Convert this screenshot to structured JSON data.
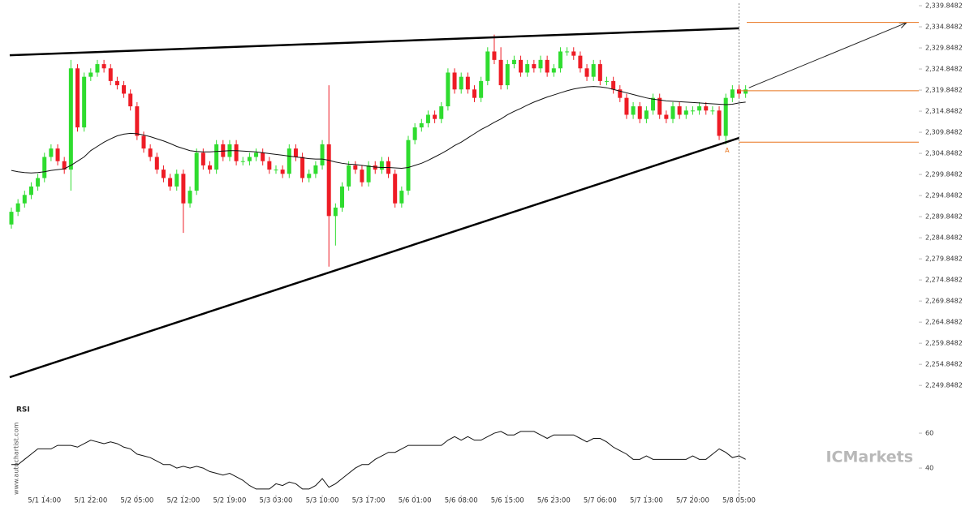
{
  "chart_data": {
    "type": "candlestick",
    "categories": [
      null,
      null,
      null,
      null,
      null,
      "5/1 14:00",
      null,
      null,
      null,
      null,
      null,
      null,
      "5/1 22:00",
      null,
      null,
      null,
      null,
      null,
      null,
      "5/2 05:00",
      null,
      null,
      null,
      null,
      null,
      null,
      "5/2 12:00",
      null,
      null,
      null,
      null,
      null,
      null,
      "5/2 19:00",
      null,
      null,
      null,
      null,
      null,
      null,
      "5/3 03:00",
      null,
      null,
      null,
      null,
      null,
      null,
      "5/3 10:00",
      null,
      null,
      null,
      null,
      null,
      null,
      "5/3 17:00",
      null,
      null,
      null,
      null,
      null,
      null,
      "5/6 01:00",
      null,
      null,
      null,
      null,
      null,
      null,
      "5/6 08:00",
      null,
      null,
      null,
      null,
      null,
      null,
      "5/6 15:00",
      null,
      null,
      null,
      null,
      null,
      null,
      "5/6 23:00",
      null,
      null,
      null,
      null,
      null,
      null,
      "5/7 06:00",
      null,
      null,
      null,
      null,
      null,
      null,
      "5/7 13:00",
      null,
      null,
      null,
      null,
      null,
      null,
      "5/7 20:00",
      null,
      null,
      null,
      null,
      null,
      null,
      "5/8 05:00",
      null
    ],
    "ohlc": {
      "up_color": "#2fdc2f",
      "down_color": "#ee1c25",
      "open": [
        2288,
        2291,
        2293,
        2295,
        2297,
        2299,
        2304,
        2306,
        2303,
        2301,
        2325,
        2311,
        2323,
        2324,
        2326,
        2325,
        2322,
        2321,
        2319,
        2316,
        2309,
        2306,
        2304,
        2301,
        2299,
        2297,
        2300,
        2293,
        2296,
        2305,
        2302,
        2301,
        2307,
        2304,
        2307,
        2303,
        2303,
        2304,
        2305,
        2303,
        2301,
        2301,
        2300,
        2306,
        2304,
        2299,
        2300,
        2302,
        2307,
        2290,
        2292,
        2297,
        2302,
        2301,
        2298,
        2302,
        2301,
        2303,
        2300,
        2293,
        2296,
        2308,
        2311,
        2312,
        2314,
        2313,
        2316,
        2324,
        2320,
        2323,
        2320,
        2318,
        2322,
        2329,
        2327,
        2321,
        2326,
        2327,
        2324,
        2326,
        2325,
        2327,
        2324,
        2325,
        2329,
        2329,
        2328,
        2325,
        2323,
        2326,
        2322,
        2322,
        2320,
        2318,
        2314,
        2316,
        2313,
        2315,
        2318,
        2314,
        2313,
        2316,
        2314,
        2315,
        2315,
        2316,
        2315,
        2315,
        2309,
        2318,
        2320,
        2319
      ],
      "high": [
        2292,
        2294,
        2296,
        2298,
        2300,
        2305,
        2307,
        2307,
        2304,
        2327,
        2326,
        2324,
        2325,
        2327,
        2327,
        2326,
        2323,
        2322,
        2320,
        2317,
        2310,
        2307,
        2305,
        2302,
        2300,
        2301,
        2301,
        2297,
        2306,
        2306,
        2303,
        2308,
        2308,
        2308,
        2308,
        2304,
        2305,
        2306,
        2306,
        2304,
        2302,
        2302,
        2307,
        2307,
        2305,
        2301,
        2303,
        2308,
        2321,
        2293,
        2298,
        2303,
        2303,
        2302,
        2303,
        2303,
        2304,
        2304,
        2301,
        2297,
        2309,
        2312,
        2313,
        2315,
        2315,
        2317,
        2325,
        2325,
        2324,
        2324,
        2321,
        2323,
        2330,
        2333,
        2330,
        2327,
        2328,
        2328,
        2327,
        2327,
        2328,
        2328,
        2326,
        2330,
        2330,
        2330,
        2329,
        2326,
        2327,
        2327,
        2323,
        2323,
        2321,
        2319,
        2317,
        2317,
        2316,
        2319,
        2319,
        2315,
        2317,
        2317,
        2316,
        2316,
        2317,
        2317,
        2316,
        2316,
        2319,
        2321,
        2321,
        2321
      ],
      "low": [
        2287,
        2290,
        2292,
        2294,
        2296,
        2298,
        2303,
        2302,
        2300,
        2296,
        2310,
        2310,
        2322,
        2323,
        2324,
        2321,
        2320,
        2318,
        2315,
        2308,
        2305,
        2303,
        2300,
        2298,
        2296,
        2296,
        2286,
        2292,
        2295,
        2301,
        2300,
        2300,
        2303,
        2303,
        2302,
        2302,
        2302,
        2303,
        2302,
        2300,
        2300,
        2299,
        2299,
        2303,
        2298,
        2298,
        2299,
        2301,
        2278,
        2283,
        2291,
        2296,
        2300,
        2297,
        2297,
        2300,
        2300,
        2299,
        2292,
        2292,
        2295,
        2307,
        2310,
        2311,
        2312,
        2312,
        2315,
        2319,
        2319,
        2319,
        2317,
        2317,
        2321,
        2326,
        2320,
        2320,
        2325,
        2323,
        2323,
        2324,
        2324,
        2323,
        2323,
        2324,
        2328,
        2327,
        2324,
        2322,
        2322,
        2321,
        2321,
        2319,
        2317,
        2313,
        2313,
        2312,
        2312,
        2314,
        2313,
        2312,
        2312,
        2313,
        2313,
        2314,
        2314,
        2314,
        2314,
        2308,
        2307,
        2317,
        2318,
        2318
      ],
      "close": [
        2291,
        2293,
        2295,
        2297,
        2299,
        2304,
        2306,
        2303,
        2301,
        2325,
        2311,
        2323,
        2324,
        2326,
        2325,
        2322,
        2321,
        2319,
        2316,
        2309,
        2306,
        2304,
        2301,
        2299,
        2297,
        2300,
        2293,
        2296,
        2305,
        2302,
        2301,
        2307,
        2304,
        2307,
        2303,
        2303,
        2304,
        2305,
        2303,
        2301,
        2301,
        2300,
        2306,
        2304,
        2299,
        2300,
        2302,
        2307,
        2290,
        2292,
        2297,
        2302,
        2301,
        2298,
        2302,
        2301,
        2303,
        2300,
        2293,
        2296,
        2308,
        2311,
        2312,
        2314,
        2313,
        2316,
        2324,
        2320,
        2323,
        2320,
        2318,
        2322,
        2329,
        2327,
        2321,
        2326,
        2327,
        2324,
        2326,
        2325,
        2327,
        2324,
        2325,
        2329,
        2329,
        2328,
        2325,
        2323,
        2326,
        2322,
        2322,
        2320,
        2318,
        2314,
        2316,
        2313,
        2315,
        2318,
        2314,
        2313,
        2316,
        2314,
        2315,
        2315,
        2316,
        2315,
        2315,
        2309,
        2318,
        2320,
        2319,
        2320
      ]
    },
    "moving_average": {
      "color": "#111111",
      "values": [
        2300.8,
        2300.5,
        2300.3,
        2300.2,
        2300.3,
        2300.5,
        2300.8,
        2301,
        2301.2,
        2302,
        2303,
        2304,
        2305.5,
        2306.5,
        2307.5,
        2308.3,
        2309,
        2309.4,
        2309.6,
        2309.5,
        2309.2,
        2308.8,
        2308.3,
        2307.8,
        2307.2,
        2306.5,
        2306,
        2305.5,
        2305.3,
        2305.2,
        2305.2,
        2305.3,
        2305.4,
        2305.5,
        2305.5,
        2305.4,
        2305.3,
        2305.2,
        2305,
        2304.8,
        2304.6,
        2304.4,
        2304.2,
        2304,
        2303.8,
        2303.6,
        2303.5,
        2303.5,
        2303.2,
        2302.8,
        2302.5,
        2302.3,
        2302.2,
        2302,
        2301.8,
        2301.6,
        2301.5,
        2301.5,
        2301.4,
        2301.3,
        2301.5,
        2302,
        2302.5,
        2303.2,
        2304,
        2304.8,
        2305.7,
        2306.7,
        2307.5,
        2308.5,
        2309.5,
        2310.5,
        2311.3,
        2312.2,
        2313,
        2314,
        2314.8,
        2315.5,
        2316.3,
        2317,
        2317.6,
        2318.2,
        2318.7,
        2319.2,
        2319.7,
        2320.1,
        2320.4,
        2320.6,
        2320.7,
        2320.6,
        2320.4,
        2320,
        2319.6,
        2319.2,
        2318.8,
        2318.4,
        2318,
        2317.7,
        2317.5,
        2317.3,
        2317.2,
        2317.1,
        2317,
        2316.9,
        2316.8,
        2316.7,
        2316.6,
        2316.5,
        2316.4,
        2316.5,
        2316.8,
        2317
      ]
    },
    "ylim": [
      2247,
      2341.2
    ],
    "yticks": [
      {
        "value": 2249.8482,
        "label": "2,249.8482"
      },
      {
        "value": 2254.8482,
        "label": "2,254.8482"
      },
      {
        "value": 2259.8482,
        "label": "2,259.8482"
      },
      {
        "value": 2264.8482,
        "label": "2,264.8482"
      },
      {
        "value": 2269.8482,
        "label": "2,269.8482"
      },
      {
        "value": 2274.8482,
        "label": "2,274.8482"
      },
      {
        "value": 2279.8482,
        "label": "2,279.8482"
      },
      {
        "value": 2284.8482,
        "label": "2,284.8482"
      },
      {
        "value": 2289.8482,
        "label": "2,289.8482"
      },
      {
        "value": 2294.8482,
        "label": "2,294.8482"
      },
      {
        "value": 2299.8482,
        "label": "2,299.8482"
      },
      {
        "value": 2304.8482,
        "label": "2,304.8482"
      },
      {
        "value": 2309.8482,
        "label": "2,309.8482"
      },
      {
        "value": 2314.8482,
        "label": "2,314.8482"
      },
      {
        "value": 2319.8482,
        "label": "2,319.8482"
      },
      {
        "value": 2324.8482,
        "label": "2,324.8482"
      },
      {
        "value": 2329.8482,
        "label": "2,329.8482"
      },
      {
        "value": 2334.8482,
        "label": "2,334.8482"
      },
      {
        "value": 2339.8482,
        "label": "2,339.8482"
      }
    ],
    "trendlines": [
      {
        "x": [
          -0.25,
          110
        ],
        "y": [
          2328.1,
          2334.5
        ]
      },
      {
        "x": [
          -0.25,
          110
        ],
        "y": [
          2251.8,
          2308.5
        ]
      }
    ],
    "projection": {
      "x": [
        111.5,
        135.3
      ],
      "y": [
        2320.4,
        2335.8
      ]
    },
    "levels": [
      2335.9,
      2319.7,
      2307.5
    ],
    "level_color": "#e8731c",
    "current_index": 110,
    "annotation": {
      "text": "A",
      "x": 108.2,
      "y": 2305.5
    },
    "rsi": {
      "title": "RSI",
      "ylim": [
        24.7,
        73.5
      ],
      "yticks": [
        40,
        60
      ],
      "values": [
        42,
        42,
        45,
        48,
        51,
        51,
        51,
        53,
        53,
        53,
        52,
        54,
        56,
        55,
        54,
        55,
        54,
        52,
        51,
        48,
        47,
        46,
        44,
        42,
        42,
        40,
        41,
        40,
        41,
        40,
        38,
        37,
        36,
        37,
        35,
        33,
        30,
        28,
        28,
        28,
        31,
        30,
        32,
        31,
        28,
        28,
        30,
        34,
        29,
        31,
        34,
        37,
        40,
        42,
        42,
        45,
        47,
        49,
        49,
        51,
        53,
        53,
        53,
        53,
        53,
        53,
        56,
        58,
        56,
        58,
        56,
        56,
        58,
        60,
        61,
        59,
        59,
        61,
        61,
        61,
        59,
        57,
        59,
        59,
        59,
        59,
        57,
        55,
        57,
        57,
        55,
        52,
        50,
        48,
        45,
        45,
        47,
        45,
        45,
        45,
        45,
        45,
        45,
        47,
        45,
        45,
        48,
        51,
        49,
        46,
        47,
        45
      ]
    },
    "watermark": "www.autochartist.com",
    "brand": "ICMarkets"
  }
}
